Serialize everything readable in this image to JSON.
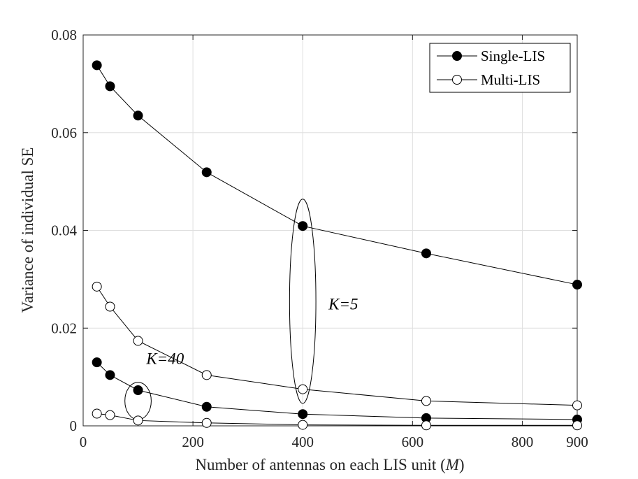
{
  "chart_data": {
    "type": "line",
    "xlabel_prefix": "Number of antennas on each LIS unit (",
    "xlabel_var": "M",
    "xlabel_suffix": ")",
    "ylabel": "Variance of individual SE",
    "xlim": [
      0,
      900
    ],
    "ylim": [
      0,
      0.08
    ],
    "xticks": [
      0,
      200,
      400,
      600,
      800,
      900
    ],
    "xtick_labels": [
      "0",
      "200",
      "400",
      "600",
      "800",
      "900"
    ],
    "yticks": [
      0,
      0.02,
      0.04,
      0.06,
      0.08
    ],
    "ytick_labels": [
      "0",
      "0.02",
      "0.04",
      "0.06",
      "0.08"
    ],
    "grid": true,
    "legend_position": "top-right",
    "legend": [
      {
        "label": "Single-LIS",
        "marker": "filled-circle"
      },
      {
        "label": "Multi-LIS",
        "marker": "open-circle"
      }
    ],
    "series": [
      {
        "group": "K=5",
        "style": "single",
        "x": [
          25,
          49,
          100,
          225,
          400,
          625,
          900
        ],
        "y": [
          0.0738,
          0.0695,
          0.0635,
          0.0519,
          0.0409,
          0.0353,
          0.0289
        ]
      },
      {
        "group": "K=5",
        "style": "multi",
        "x": [
          25,
          49,
          100,
          225,
          400,
          625,
          900
        ],
        "y": [
          0.0285,
          0.0244,
          0.0174,
          0.0104,
          0.0075,
          0.0051,
          0.0042
        ]
      },
      {
        "group": "K=40",
        "style": "single",
        "x": [
          25,
          49,
          100,
          225,
          400,
          625,
          900
        ],
        "y": [
          0.013,
          0.0104,
          0.0073,
          0.0039,
          0.0024,
          0.0016,
          0.0013
        ]
      },
      {
        "group": "K=40",
        "style": "multi",
        "x": [
          25,
          49,
          100,
          225,
          400,
          625,
          900
        ],
        "y": [
          0.0025,
          0.0022,
          0.0011,
          0.0006,
          0.0002,
          0.0001,
          0.0001
        ]
      }
    ],
    "annotations": [
      {
        "text": "K=5",
        "x": 447,
        "y": 0.0238
      },
      {
        "text": "K=40",
        "x": 115,
        "y": 0.0127
      }
    ],
    "ellipses": [
      {
        "group": "K=5",
        "cx": 400,
        "cy": 0.0255,
        "rx": 24,
        "ry": 0.0209
      },
      {
        "group": "K=40",
        "cx": 100,
        "cy": 0.0051,
        "rx": 24,
        "ry": 0.0038
      }
    ]
  }
}
